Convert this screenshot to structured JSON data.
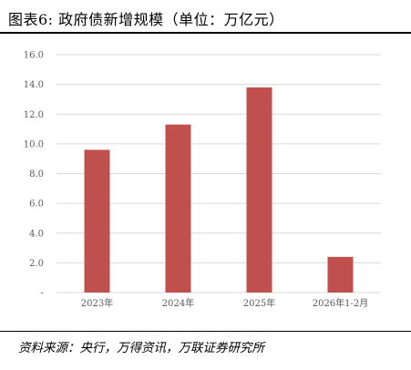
{
  "header": {
    "title": "图表6:   政府债新增规模（单位：万亿元）"
  },
  "colors": {
    "bar": "#C0504D",
    "grid": "#D9D9D9",
    "tick_text": "#595959"
  },
  "chart_data": {
    "type": "bar",
    "title": "",
    "xlabel": "",
    "ylabel": "",
    "categories": [
      "2023年",
      "2024年",
      "2025年",
      "2026年1-2月"
    ],
    "values": [
      9.6,
      11.3,
      13.8,
      2.4
    ],
    "ylim": [
      0,
      16
    ],
    "yticks": [
      0,
      2,
      4,
      6,
      8,
      10,
      12,
      14,
      16
    ],
    "ytick_labels": [
      "-",
      "2.0",
      "4.0",
      "6.0",
      "8.0",
      "10.0",
      "12.0",
      "14.0",
      "16.0"
    ],
    "grid": true,
    "legend": "none"
  },
  "footer": {
    "source": "资料来源：央行，万得资讯，万联证券研究所"
  }
}
